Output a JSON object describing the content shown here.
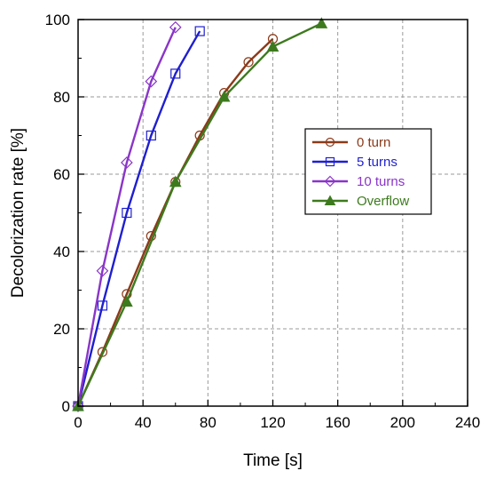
{
  "chart_data": {
    "type": "line",
    "xlabel": "Time [s]",
    "ylabel": "Decolorization rate [%]",
    "xlim": [
      0,
      240
    ],
    "ylim": [
      0,
      100
    ],
    "x_ticks": [
      "0",
      "40",
      "80",
      "120",
      "160",
      "200",
      "240"
    ],
    "y_ticks": [
      "0",
      "20",
      "40",
      "60",
      "80",
      "100"
    ],
    "grid": true,
    "legend_position": "right-middle",
    "series": [
      {
        "name": "0 turn",
        "color": "#8B3A1A",
        "marker": "circle-open",
        "x": [
          0,
          15,
          30,
          45,
          60,
          75,
          90,
          105,
          120
        ],
        "y": [
          0,
          14,
          29,
          44,
          58,
          70,
          81,
          89,
          95
        ]
      },
      {
        "name": "5 turns",
        "color": "#1F1FD0",
        "marker": "square-open",
        "x": [
          0,
          15,
          30,
          45,
          60,
          75
        ],
        "y": [
          0,
          26,
          50,
          70,
          86,
          97
        ]
      },
      {
        "name": "10 turns",
        "color": "#8A35C8",
        "marker": "diamond-open",
        "x": [
          0,
          15,
          30,
          45,
          60
        ],
        "y": [
          0,
          35,
          63,
          84,
          98
        ]
      },
      {
        "name": "Overflow",
        "color": "#3D7A1E",
        "marker": "triangle-filled",
        "x": [
          0,
          30,
          60,
          90,
          120,
          150
        ],
        "y": [
          0,
          27,
          58,
          80,
          93,
          99
        ]
      }
    ]
  }
}
